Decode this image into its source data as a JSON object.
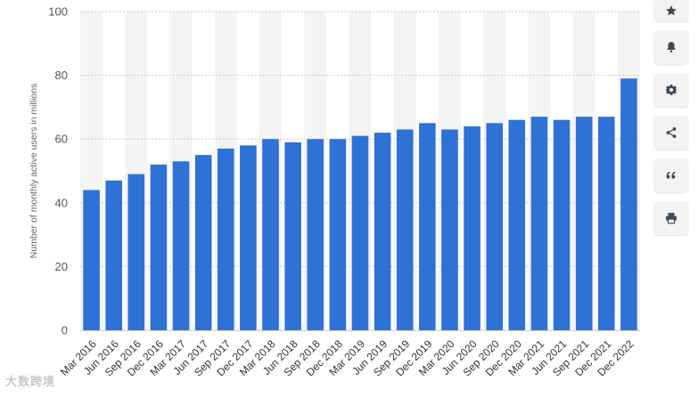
{
  "chart_data": {
    "type": "bar",
    "ylabel": "Number of monthly active users in millions",
    "ylim": [
      0,
      100
    ],
    "yticks": [
      0,
      20,
      40,
      60,
      80,
      100
    ],
    "grid": true,
    "bar_color": "#2f72d6",
    "band_color": "#f4f4f4",
    "categories": [
      "Mar 2016",
      "Jun 2016",
      "Sep 2016",
      "Dec 2016",
      "Mar 2017",
      "Jun 2017",
      "Sep 2017",
      "Dec 2017",
      "Mar 2018",
      "Jun 2018",
      "Sep 2018",
      "Dec 2018",
      "Mar 2019",
      "Jun 2019",
      "Sep 2019",
      "Dec 2019",
      "Mar 2020",
      "Jun 2020",
      "Sep 2020",
      "Dec 2020",
      "Mar 2021",
      "Jun 2021",
      "Sep 2021",
      "Dec 2021",
      "Dec 2022"
    ],
    "values": [
      44,
      47,
      49,
      52,
      53,
      55,
      57,
      58,
      60,
      59,
      60,
      60,
      61,
      62,
      63,
      65,
      63,
      64,
      65,
      66,
      67,
      66,
      67,
      67,
      79
    ]
  },
  "toolbar": {
    "buttons": [
      {
        "name": "favorite-button",
        "icon": "star-icon"
      },
      {
        "name": "notification-button",
        "icon": "bell-icon"
      },
      {
        "name": "settings-button",
        "icon": "gear-icon"
      },
      {
        "name": "share-button",
        "icon": "share-icon"
      },
      {
        "name": "cite-button",
        "icon": "quote-icon"
      },
      {
        "name": "print-button",
        "icon": "print-icon"
      }
    ]
  },
  "watermark": "大数跨境"
}
